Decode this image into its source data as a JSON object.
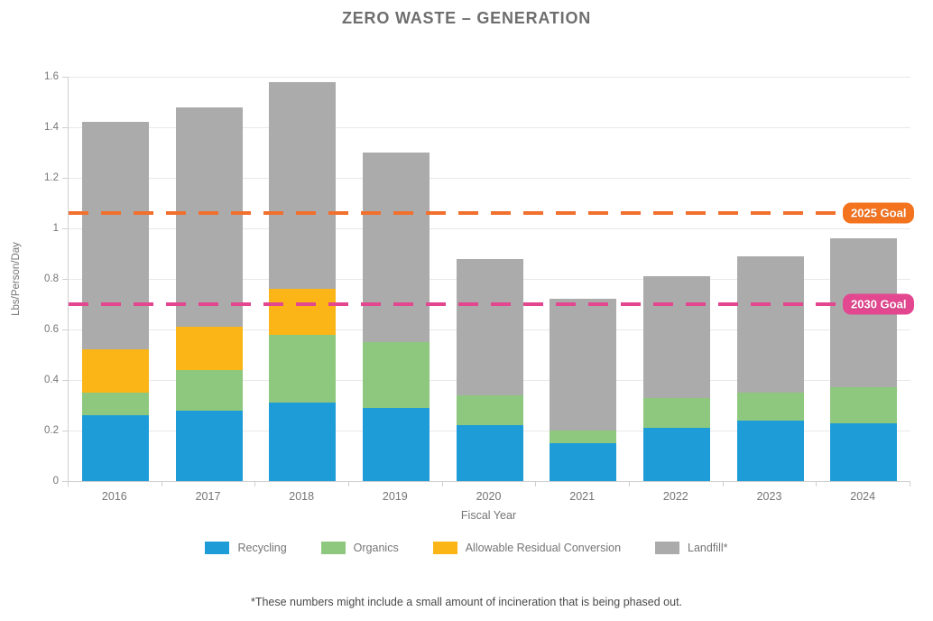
{
  "title": "ZERO WASTE – GENERATION",
  "footnote": "*These numbers might include a small amount of incineration that is being phased out.",
  "chart_data": {
    "type": "bar",
    "stacked": true,
    "title": "ZERO WASTE – GENERATION",
    "xlabel": "Fiscal Year",
    "ylabel": "Lbs/Person/Day",
    "ylim": [
      0,
      1.6
    ],
    "grid": "horizontal",
    "legend_position": "bottom",
    "yticks": [
      {
        "value": 0,
        "label": "0"
      },
      {
        "value": 0.2,
        "label": "0.2"
      },
      {
        "value": 0.4,
        "label": "0.4"
      },
      {
        "value": 0.6,
        "label": "0.6"
      },
      {
        "value": 0.8,
        "label": "0.8"
      },
      {
        "value": 1,
        "label": "1"
      },
      {
        "value": 1.2,
        "label": "1.2"
      },
      {
        "value": 1.4,
        "label": "1.4"
      },
      {
        "value": 1.6,
        "label": "1.6"
      }
    ],
    "categories": [
      "2016",
      "2017",
      "2018",
      "2019",
      "2020",
      "2021",
      "2022",
      "2023",
      "2024"
    ],
    "series": [
      {
        "name": "Recycling",
        "color": "#1E9CD7",
        "values": [
          0.26,
          0.28,
          0.31,
          0.29,
          0.22,
          0.15,
          0.21,
          0.24,
          0.23
        ]
      },
      {
        "name": "Organics",
        "color": "#8DC87E",
        "values": [
          0.09,
          0.16,
          0.27,
          0.26,
          0.12,
          0.05,
          0.12,
          0.11,
          0.14
        ]
      },
      {
        "name": "Allowable Residual Conversion",
        "color": "#FBB517",
        "values": [
          0.17,
          0.17,
          0.18,
          0,
          0,
          0,
          0,
          0,
          0
        ]
      },
      {
        "name": "Landfill*",
        "color": "#ABABAB",
        "values": [
          0.9,
          0.87,
          0.82,
          0.75,
          0.54,
          0.52,
          0.48,
          0.54,
          0.59
        ]
      }
    ],
    "totals": [
      1.42,
      1.48,
      1.58,
      1.3,
      0.88,
      0.72,
      0.81,
      0.89,
      0.96
    ],
    "reference_lines": [
      {
        "label": "2025 Goal",
        "value": 1.06,
        "line_color": "#F2702D",
        "badge_color": "#F4731F"
      },
      {
        "label": "2030 Goal",
        "value": 0.7,
        "line_color": "#E2478F",
        "badge_color": "#E2478F"
      }
    ]
  }
}
